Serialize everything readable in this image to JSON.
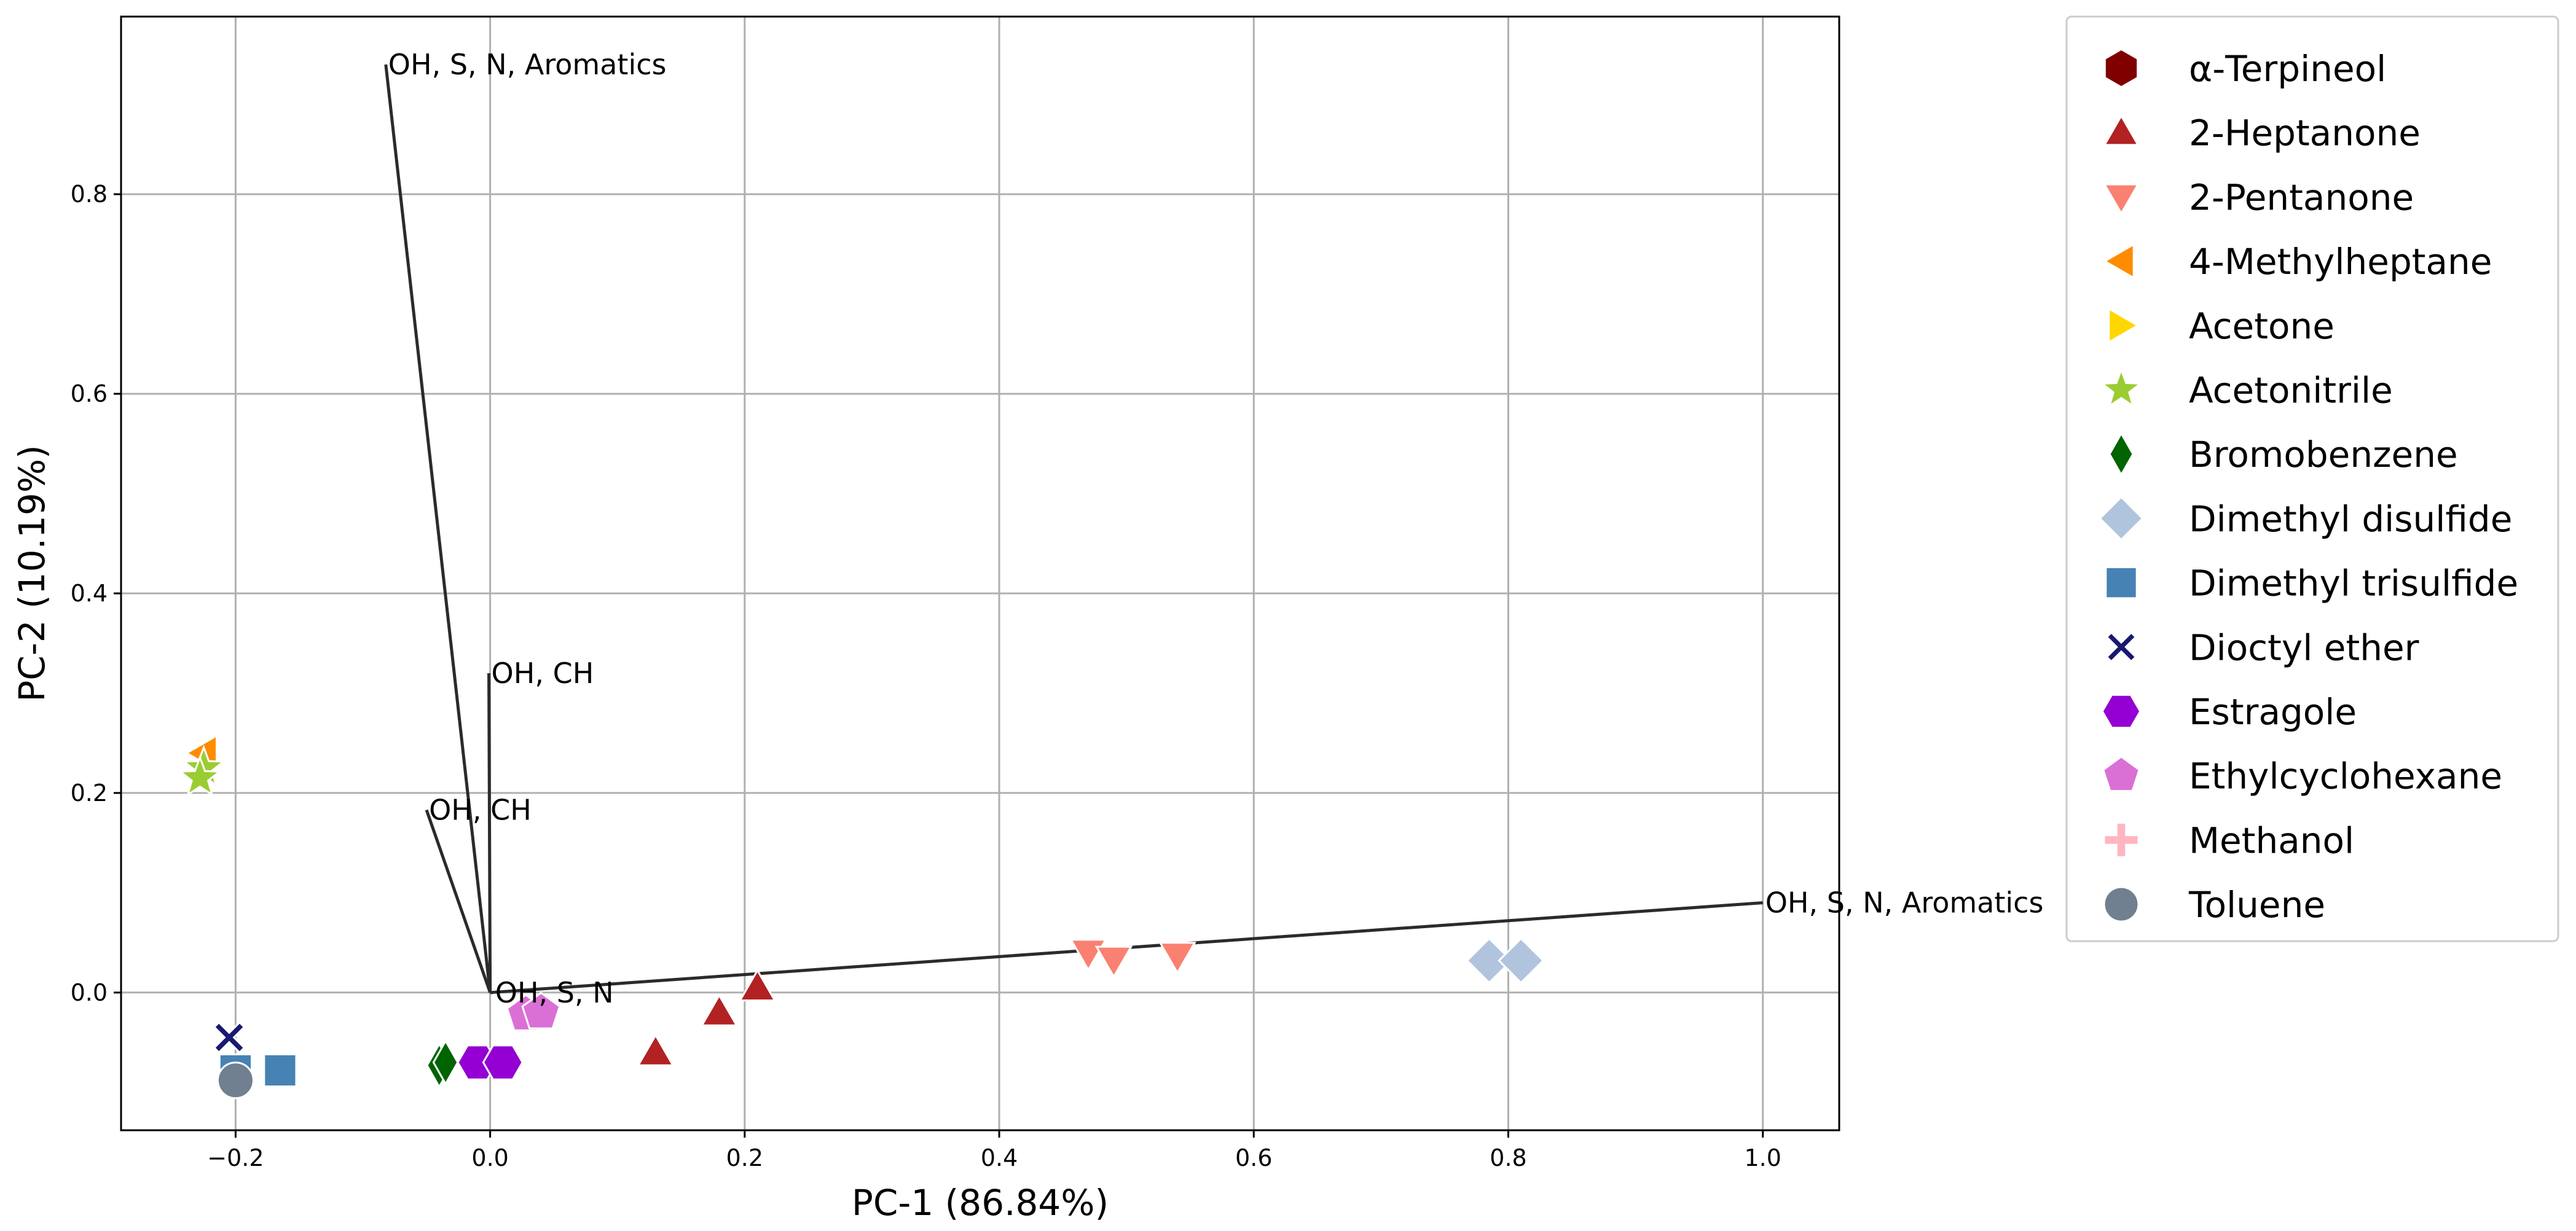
{
  "chart_data": {
    "type": "scatter",
    "xlabel": "PC-1 (86.84%)",
    "ylabel": "PC-2 (10.19%)",
    "xlim": [
      -0.29,
      1.06
    ],
    "ylim": [
      -0.138,
      0.978
    ],
    "x_ticks": [
      -0.2,
      0.0,
      0.2,
      0.4,
      0.6,
      0.8,
      1.0
    ],
    "x_tick_labels": [
      "−0.2",
      "0.0",
      "0.2",
      "0.4",
      "0.6",
      "0.8",
      "1.0"
    ],
    "y_ticks": [
      0.0,
      0.2,
      0.4,
      0.6,
      0.8
    ],
    "y_tick_labels": [
      "0.0",
      "0.2",
      "0.4",
      "0.6",
      "0.8"
    ],
    "grid": true,
    "legend_position": "outside right",
    "loadings": [
      {
        "label": "OH, S, N, Aromatics",
        "x": -0.082,
        "y": 0.93
      },
      {
        "label": "OH, CH",
        "x": -0.001,
        "y": 0.32
      },
      {
        "label": "OH, CH",
        "x": -0.05,
        "y": 0.183
      },
      {
        "label": "OH, S, N",
        "x": 0.002,
        "y": 0.0
      },
      {
        "label": "OH, S, N, Aromatics",
        "x": 1.0,
        "y": 0.09
      }
    ],
    "series": [
      {
        "name": "α-Terpineol",
        "marker": "hexagon",
        "color": "#800000",
        "x": [],
        "y": []
      },
      {
        "name": "2-Heptanone",
        "marker": "triangle-up",
        "color": "#b22222",
        "x": [
          0.13,
          0.18,
          0.21
        ],
        "y": [
          -0.06,
          -0.02,
          0.005
        ]
      },
      {
        "name": "2-Pentanone",
        "marker": "triangle-down",
        "color": "#fa8072",
        "x": [
          0.47,
          0.49,
          0.54
        ],
        "y": [
          0.04,
          0.033,
          0.037
        ]
      },
      {
        "name": "4-Methylheptane",
        "marker": "triangle-left",
        "color": "#ff8c00",
        "x": [
          -0.225
        ],
        "y": [
          0.24
        ]
      },
      {
        "name": "Acetone",
        "marker": "triangle-right",
        "color": "#ffd700",
        "x": [],
        "y": []
      },
      {
        "name": "Acetonitrile",
        "marker": "star",
        "color": "#9acd32",
        "x": [
          -0.225,
          -0.228
        ],
        "y": [
          0.225,
          0.215
        ]
      },
      {
        "name": "Bromobenzene",
        "marker": "thin-diamond",
        "color": "#006400",
        "x": [
          -0.04,
          -0.035
        ],
        "y": [
          -0.073,
          -0.07
        ]
      },
      {
        "name": "Dimethyl disulfide",
        "marker": "diamond",
        "color": "#b0c4de",
        "x": [
          0.785,
          0.81
        ],
        "y": [
          0.032,
          0.032
        ]
      },
      {
        "name": "Dimethyl trisulfide",
        "marker": "square",
        "color": "#4682b4",
        "x": [
          -0.2,
          -0.165
        ],
        "y": [
          -0.078,
          -0.078
        ]
      },
      {
        "name": "Dioctyl ether",
        "marker": "x",
        "color": "#191970",
        "x": [
          -0.205
        ],
        "y": [
          -0.045
        ]
      },
      {
        "name": "Estragole",
        "marker": "hexagon-flat",
        "color": "#9400d3",
        "x": [
          -0.01,
          0.01
        ],
        "y": [
          -0.07,
          -0.07
        ]
      },
      {
        "name": "Ethylcyclohexane",
        "marker": "pentagon",
        "color": "#da70d6",
        "x": [
          0.028,
          0.04
        ],
        "y": [
          -0.022,
          -0.02
        ]
      },
      {
        "name": "Methanol",
        "marker": "plus",
        "color": "#ffb6c1",
        "x": [],
        "y": []
      },
      {
        "name": "Toluene",
        "marker": "circle",
        "color": "#708090",
        "x": [
          -0.2
        ],
        "y": [
          -0.088
        ]
      }
    ]
  }
}
